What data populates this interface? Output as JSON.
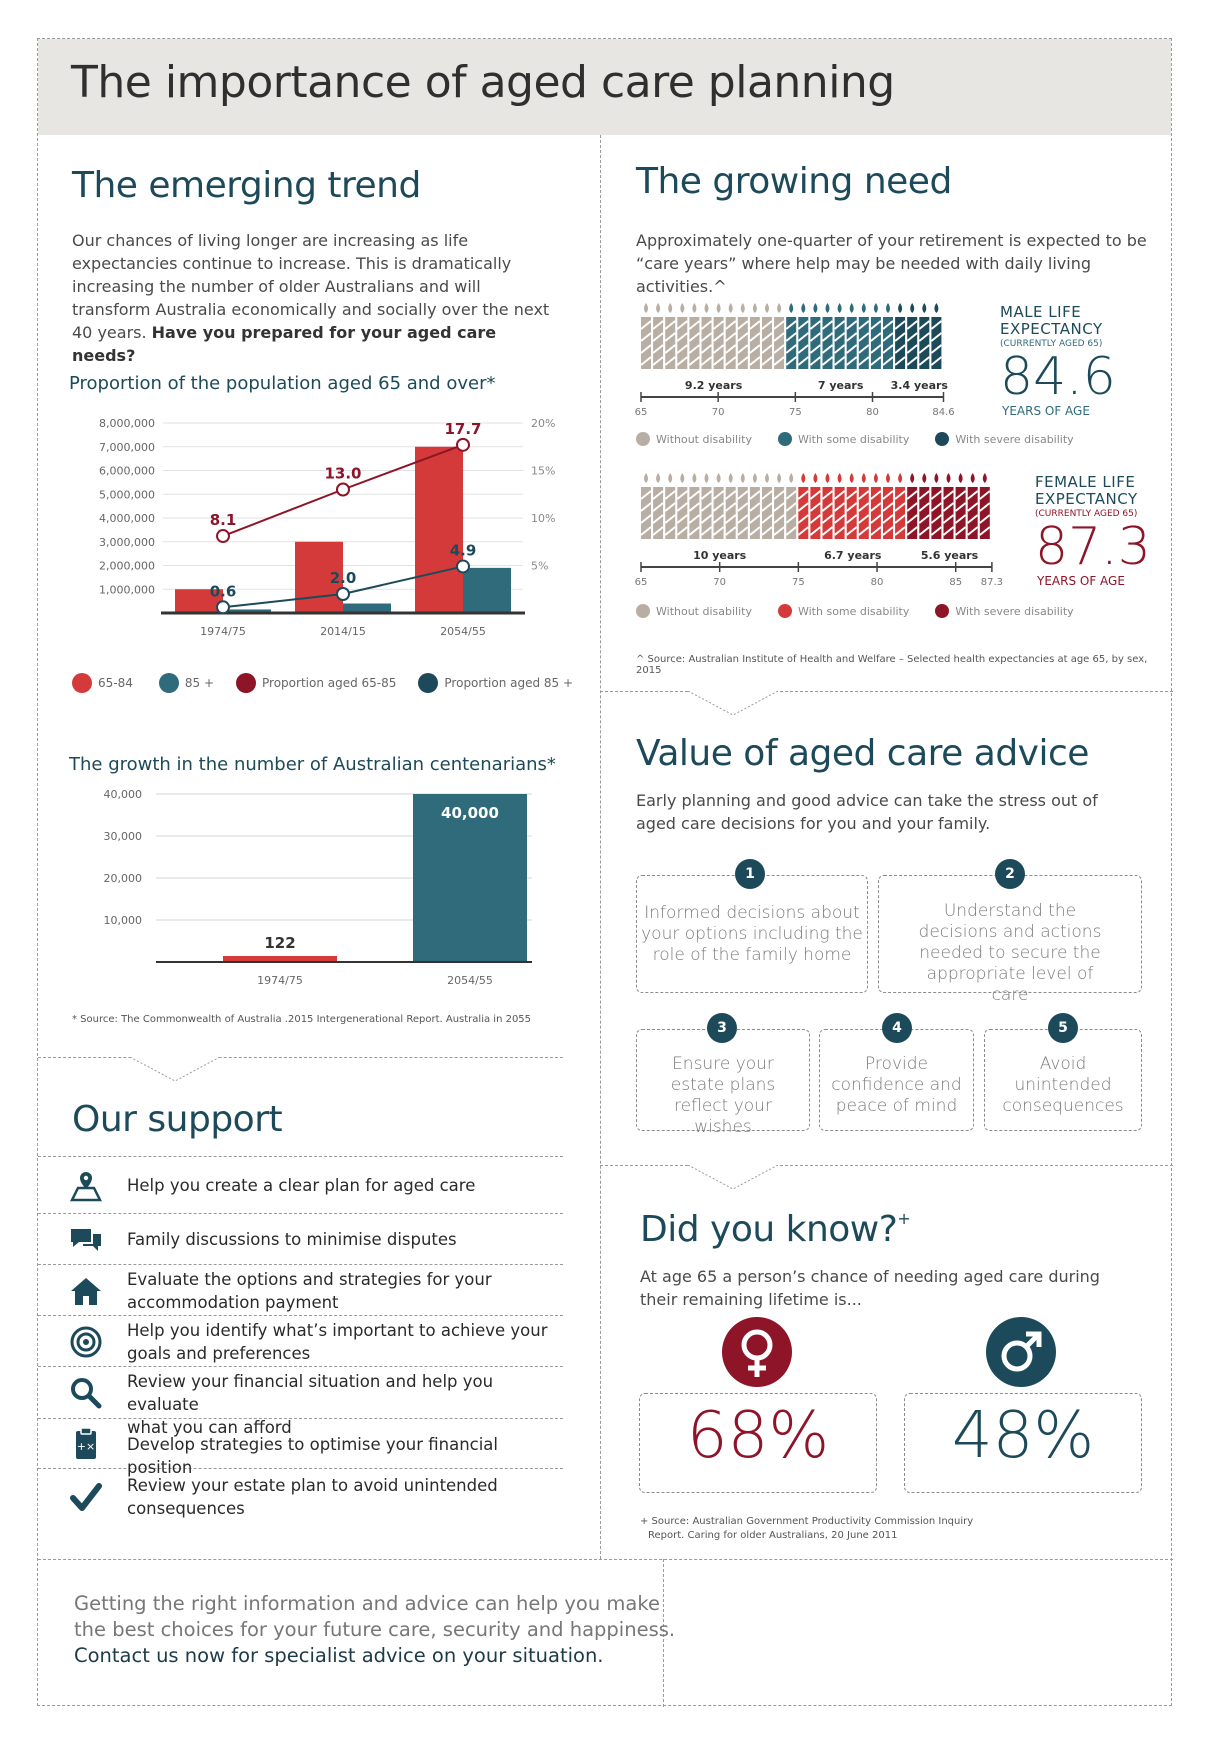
{
  "header": {
    "title": "The importance of aged care planning"
  },
  "colors": {
    "teal": "#2f6b7b",
    "navy": "#1d4a5a",
    "red": "#d43a3a",
    "darkred": "#8e1428",
    "grey": "#b8aea4"
  },
  "emerging": {
    "title": "The emerging trend",
    "para": "Our chances of living longer are increasing as life expectancies continue to increase. This is dramatically increasing the number of older Australians and will transform Australia economically and socially over the next 40 years. ",
    "para_bold": "Have you prepared for your aged care needs?"
  },
  "chart1": {
    "title": "Proportion of the population aged 65 and over*",
    "legend": [
      "65-84",
      "85 +",
      "Proportion aged 65-85",
      "Proportion aged 85 +"
    ]
  },
  "chart2": {
    "title": "The growth in the number of Australian centenarians*"
  },
  "source1": "* Source: The Commonwealth of Australia .2015 Intergenerational Report. Australia in 2055",
  "chart_data": [
    {
      "type": "bar",
      "title": "Proportion of the population aged 65 and over*",
      "categories": [
        "1974/75",
        "2014/15",
        "2054/55"
      ],
      "y_ticks": [
        "8,000,000",
        "7,000,000",
        "6,000,000",
        "5,000,000",
        "4,000,000",
        "3,000,000",
        "2,000,000",
        "1,000,000"
      ],
      "y2_ticks": [
        "20%",
        "15%",
        "10%",
        "5%"
      ],
      "ylim": [
        0,
        8000000
      ],
      "y2lim": [
        0,
        20
      ],
      "series": [
        {
          "name": "65-84",
          "type": "bar",
          "values": [
            1000000,
            3000000,
            7000000
          ]
        },
        {
          "name": "85 +",
          "type": "bar",
          "values": [
            150000,
            400000,
            1900000
          ]
        },
        {
          "name": "Proportion aged 65-85",
          "type": "line",
          "values": [
            8.1,
            13.0,
            17.7
          ],
          "labels": [
            "8.1",
            "13.0",
            "17.7"
          ]
        },
        {
          "name": "Proportion aged 85 +",
          "type": "line",
          "values": [
            0.6,
            2.0,
            4.9
          ],
          "labels": [
            "0.6",
            "2.0",
            "4.9"
          ]
        }
      ]
    },
    {
      "type": "bar",
      "title": "The growth in the number of Australian centenarians*",
      "categories": [
        "1974/75",
        "2054/55"
      ],
      "values": [
        122,
        40000
      ],
      "value_labels": [
        "122",
        "40,000"
      ],
      "y_ticks": [
        "40,000",
        "30,000",
        "20,000",
        "10,000"
      ],
      "ylim": [
        0,
        40000
      ]
    }
  ],
  "support": {
    "title": "Our support",
    "items": [
      {
        "icon": "map-pin-icon",
        "lines": [
          "Help you create a clear plan for aged care"
        ]
      },
      {
        "icon": "chat-bubbles-icon",
        "lines": [
          "Family discussions to minimise disputes"
        ]
      },
      {
        "icon": "house-icon",
        "lines": [
          "Evaluate the options and strategies for your",
          "accommodation payment"
        ]
      },
      {
        "icon": "target-icon",
        "lines": [
          "Help you identify what’s important to achieve your",
          "goals and preferences"
        ]
      },
      {
        "icon": "magnifier-icon",
        "lines": [
          "Review your financial situation and help you evaluate",
          "what you can afford"
        ]
      },
      {
        "icon": "clipboard-calculator-icon",
        "lines": [
          "Develop strategies to optimise your financial position"
        ]
      },
      {
        "icon": "checkmark-icon",
        "lines": [
          "Review your estate plan to avoid unintended",
          "consequences"
        ]
      }
    ]
  },
  "growing": {
    "title": "The growing need",
    "para": "Approximately one-quarter of your retirement is expected to be “care years” where help may be needed with daily living activities.^",
    "male": {
      "label1": "MALE LIFE",
      "label2": "EXPECTANCY",
      "sub": "(CURRENTLY AGED 65)",
      "value": "84.6",
      "unit": "YEARS OF AGE",
      "segments": [
        "9.2 years",
        "7 years",
        "3.4 years"
      ],
      "axis": [
        "65",
        "70",
        "75",
        "80",
        "84.6"
      ],
      "legend": [
        "Without disability",
        "With some disability",
        "With severe disability"
      ]
    },
    "female": {
      "label1": "FEMALE LIFE",
      "label2": "EXPECTANCY",
      "sub": "(CURRENTLY AGED 65)",
      "value": "87.3",
      "unit": "YEARS OF AGE",
      "segments": [
        "10 years",
        "6.7 years",
        "5.6 years"
      ],
      "axis": [
        "65",
        "70",
        "75",
        "80",
        "85",
        "87.3"
      ],
      "legend": [
        "Without disability",
        "With some disability",
        "With severe disability"
      ]
    },
    "source": "^ Source: Australian Institute of Health and Welfare – Selected health expectancies at age 65, by sex, 2015"
  },
  "value": {
    "title": "Value of aged care advice",
    "para": "Early planning and good advice can take the stress out of aged care decisions for you and your family.",
    "items": [
      {
        "num": "1",
        "text": "Informed decisions about your options including the role of the family home"
      },
      {
        "num": "2",
        "text": "Understand the decisions and actions needed to secure the appropriate level of care"
      },
      {
        "num": "3",
        "text": "Ensure your estate plans reflect your wishes"
      },
      {
        "num": "4",
        "text": "Provide confidence and peace of mind"
      },
      {
        "num": "5",
        "text": "Avoid unintended consequences"
      }
    ]
  },
  "know": {
    "title": "Did you know?",
    "sup": "+",
    "para": "At age 65 a person’s chance of needing aged care during their remaining lifetime is...",
    "female_pct": "68%",
    "male_pct": "48%",
    "source1": "+ Source: Australian Government Productivity Commission Inquiry",
    "source2": "Report. Caring for older Australians, 20 June 2011"
  },
  "footer": {
    "line1": "Getting the right information and advice can help you make",
    "line2": "the best choices for your future care, security and happiness.",
    "line3": "Contact us now for specialist advice on your situation."
  }
}
